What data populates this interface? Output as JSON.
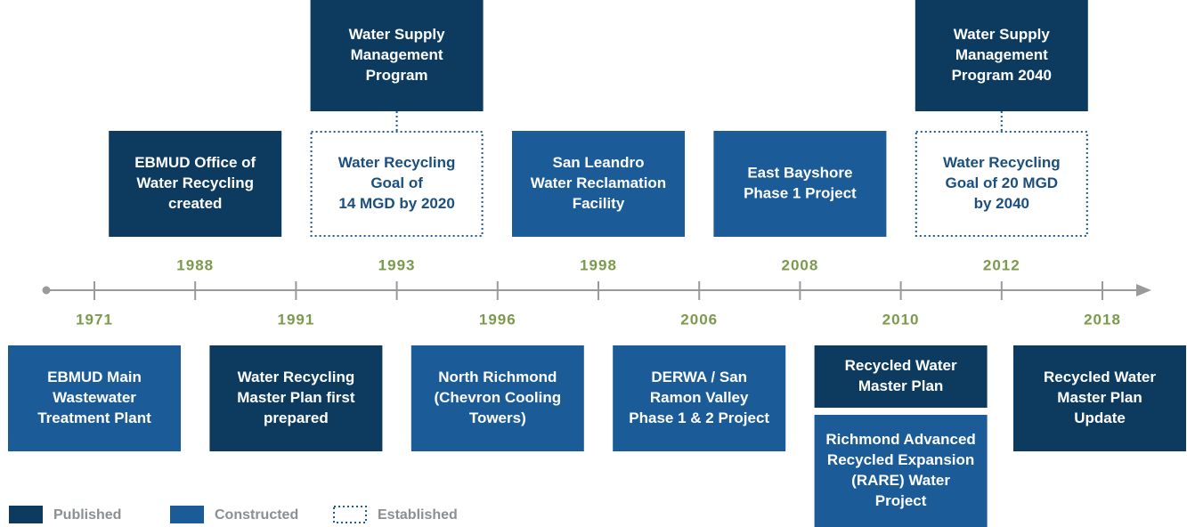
{
  "legend": [
    "Published",
    "Constructed",
    "Established"
  ],
  "events": [
    {
      "year": "1971",
      "side": "below",
      "boxes": [
        {
          "legend": 1,
          "lines": [
            "EBMUD Main",
            "Wastewater",
            "Treatment Plant"
          ]
        }
      ]
    },
    {
      "year": "1988",
      "side": "above",
      "boxes": [
        {
          "legend": 0,
          "lines": [
            "EBMUD Office of",
            "Water Recycling",
            "created"
          ]
        }
      ]
    },
    {
      "year": "1991",
      "side": "below",
      "boxes": [
        {
          "legend": 0,
          "lines": [
            "Water Recycling",
            "Master Plan first",
            "prepared"
          ]
        }
      ]
    },
    {
      "year": "1993",
      "side": "above",
      "boxes": [
        {
          "legend": 2,
          "lines": [
            "Water Recycling",
            "Goal of",
            "14 MGD by 2020"
          ]
        },
        {
          "legend": 0,
          "lines": [
            "Water Supply",
            "Management",
            "Program"
          ]
        }
      ]
    },
    {
      "year": "1996",
      "side": "below",
      "boxes": [
        {
          "legend": 1,
          "lines": [
            "North Richmond",
            "(Chevron Cooling",
            "Towers)"
          ]
        }
      ]
    },
    {
      "year": "1998",
      "side": "above",
      "boxes": [
        {
          "legend": 1,
          "lines": [
            "San Leandro",
            "Water Reclamation",
            "Facility"
          ]
        }
      ]
    },
    {
      "year": "2006",
      "side": "below",
      "boxes": [
        {
          "legend": 1,
          "lines": [
            "DERWA / San",
            "Ramon Valley",
            "Phase 1 & 2 Project"
          ]
        }
      ]
    },
    {
      "year": "2008",
      "side": "above",
      "boxes": [
        {
          "legend": 1,
          "lines": [
            "East Bayshore",
            "Phase 1 Project"
          ]
        }
      ]
    },
    {
      "year": "2010",
      "side": "below",
      "boxes": [
        {
          "legend": 0,
          "lines": [
            "Recycled Water",
            "Master Plan"
          ]
        },
        {
          "legend": 1,
          "lines": [
            "Richmond Advanced",
            "Recycled Expansion",
            "(RARE) Water",
            "Project"
          ]
        }
      ]
    },
    {
      "year": "2012",
      "side": "above",
      "boxes": [
        {
          "legend": 2,
          "lines": [
            "Water Recycling",
            "Goal of 20 MGD",
            "by 2040"
          ]
        },
        {
          "legend": 0,
          "lines": [
            "Water Supply",
            "Management",
            "Program 2040"
          ]
        }
      ]
    },
    {
      "year": "2018",
      "side": "below",
      "boxes": [
        {
          "legend": 0,
          "lines": [
            "Recycled Water",
            "Master Plan",
            "Update"
          ]
        }
      ]
    }
  ]
}
